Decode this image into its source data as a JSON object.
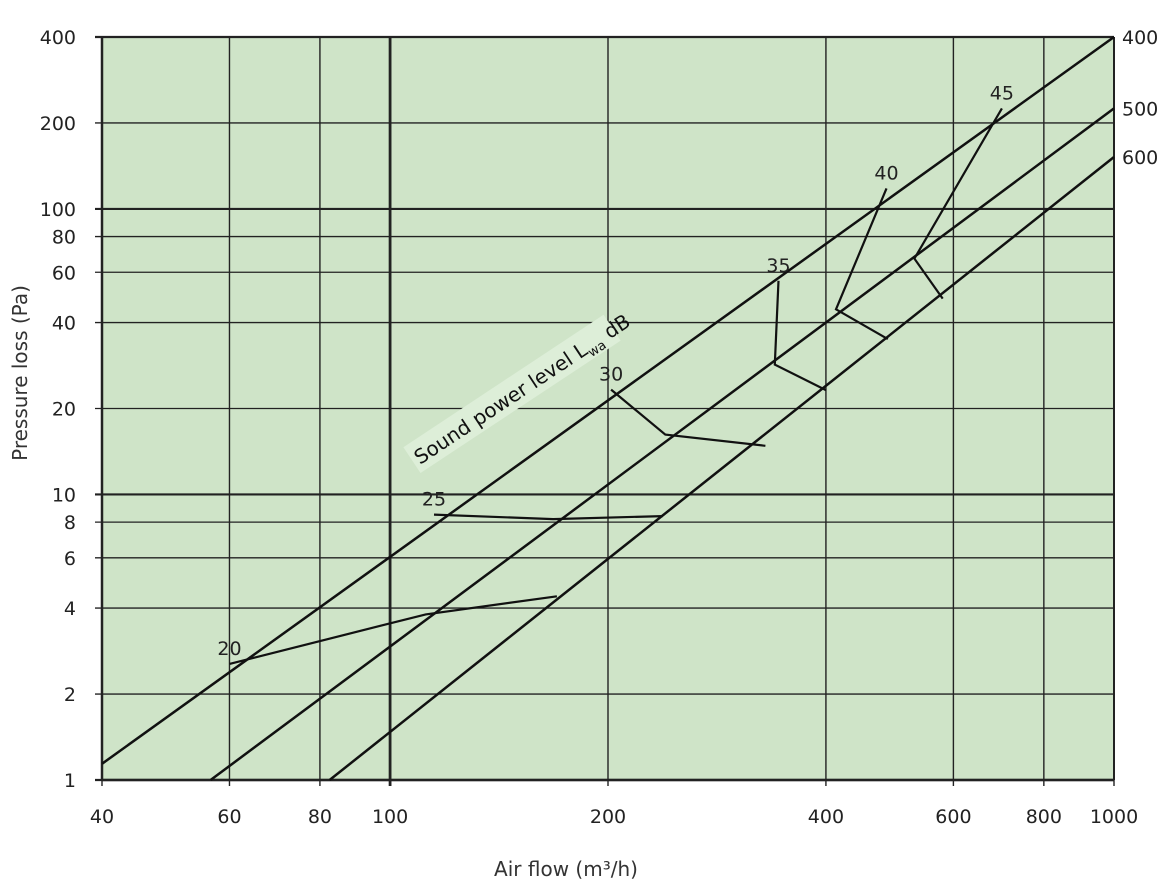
{
  "chart_data": {
    "type": "line",
    "x_scale": "log",
    "y_scale": "log",
    "xlim": [
      40,
      1000
    ],
    "ylim": [
      1,
      400
    ],
    "xlabel": "Air flow (m³/h)",
    "ylabel": "Pressure loss (Pa)",
    "x_ticks": [
      40,
      60,
      80,
      100,
      200,
      400,
      600,
      800,
      1000
    ],
    "y_ticks": [
      1,
      2,
      4,
      6,
      8,
      10,
      20,
      40,
      60,
      80,
      100,
      200,
      400
    ],
    "x_tick_labels": [
      "40",
      "60",
      "80",
      "100",
      "200",
      "400",
      "600",
      "800",
      "1000"
    ],
    "y_tick_labels": [
      "1",
      "2",
      "4",
      "6",
      "8",
      "10",
      "20",
      "40",
      "60",
      "80",
      "100",
      "200",
      "400"
    ],
    "grid": true,
    "colors": {
      "plot_bg": "#cfe4c8",
      "line": "#111111",
      "grid": "#222222",
      "annotation_bg": "#ddeed8"
    },
    "series": [
      {
        "name": "400",
        "points": [
          [
            40,
            1.14
          ],
          [
            1000,
            400
          ]
        ]
      },
      {
        "name": "500",
        "points": [
          [
            56.5,
            1
          ],
          [
            1000,
            225
          ]
        ]
      },
      {
        "name": "600",
        "points": [
          [
            82.5,
            1
          ],
          [
            1000,
            152
          ]
        ]
      }
    ],
    "sound_curves": [
      {
        "name": "20",
        "points": [
          [
            60,
            2.55
          ],
          [
            112,
            3.8
          ],
          [
            170,
            4.4
          ]
        ]
      },
      {
        "name": "25",
        "points": [
          [
            115,
            8.5
          ],
          [
            168,
            8.2
          ],
          [
            238,
            8.4
          ]
        ]
      },
      {
        "name": "30",
        "points": [
          [
            202,
            23.3
          ],
          [
            240,
            16.2
          ],
          [
            330,
            14.8
          ]
        ]
      },
      {
        "name": "35",
        "points": [
          [
            344,
            56
          ],
          [
            340,
            28.5
          ],
          [
            400,
            23.2
          ]
        ]
      },
      {
        "name": "40",
        "points": [
          [
            485,
            118
          ],
          [
            413,
            44.5
          ],
          [
            487,
            35
          ]
        ]
      },
      {
        "name": "45",
        "points": [
          [
            700,
            225
          ],
          [
            530,
            67
          ],
          [
            580,
            48.5
          ]
        ]
      }
    ],
    "annotation": {
      "text_main": "Sound power level L",
      "text_sub": "wa",
      "text_end": " dB"
    }
  }
}
